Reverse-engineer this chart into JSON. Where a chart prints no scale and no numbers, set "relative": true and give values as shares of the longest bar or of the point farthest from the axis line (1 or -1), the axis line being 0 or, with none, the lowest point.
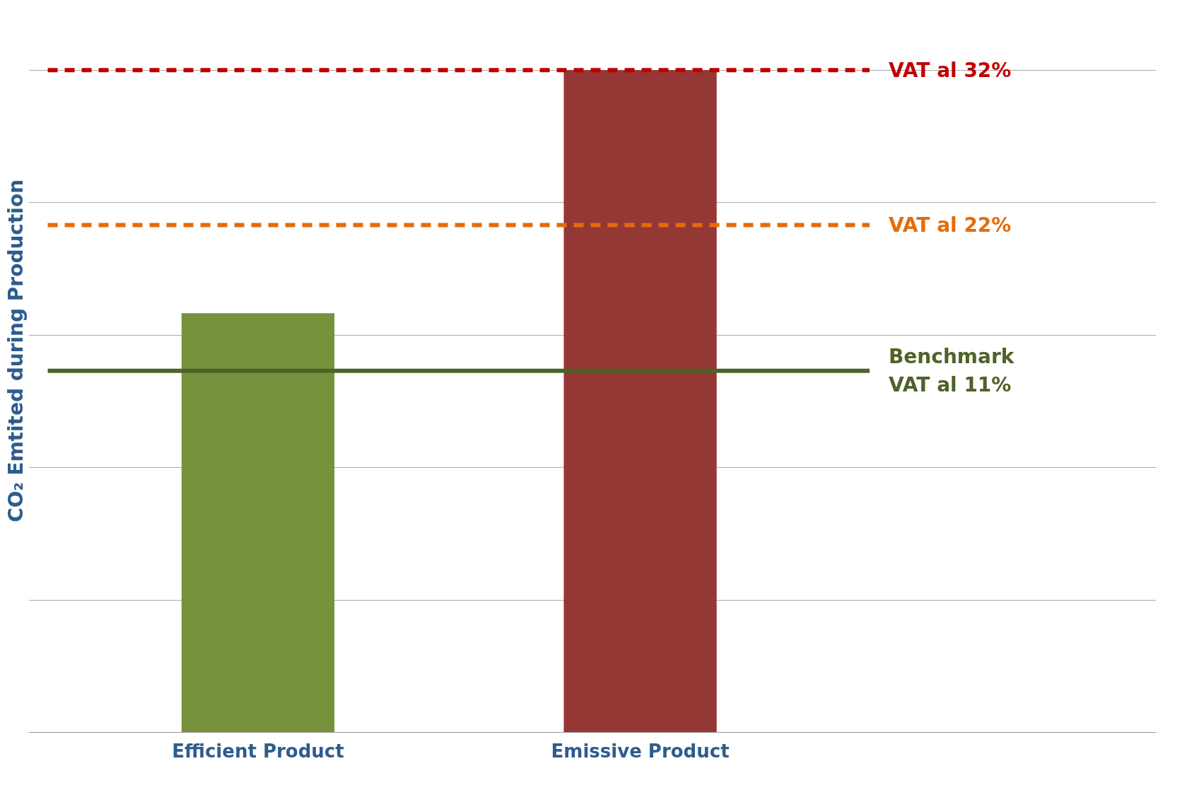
{
  "chart_data": {
    "type": "bar",
    "relative": true,
    "ylabel": "CO₂ Emtited during Production",
    "categories": [
      "Efficient Product",
      "Emissive Product"
    ],
    "values": [
      0.633,
      1.0
    ],
    "colors": [
      "#76923c",
      "#953735"
    ],
    "grid": "y",
    "ref_lines": [
      {
        "axis": "y",
        "value": 1.0,
        "label": "VAT al 32%",
        "color": "#c00000",
        "line_style": "dashed"
      },
      {
        "axis": "y",
        "value": 0.766,
        "label": "VAT al 22%",
        "color": "#e46c0a",
        "line_style": "dashed"
      },
      {
        "axis": "y",
        "value": 0.546,
        "label": "Benchmark\nVAT al 11%",
        "color": "#4f6228",
        "line_style": "solid"
      }
    ]
  }
}
